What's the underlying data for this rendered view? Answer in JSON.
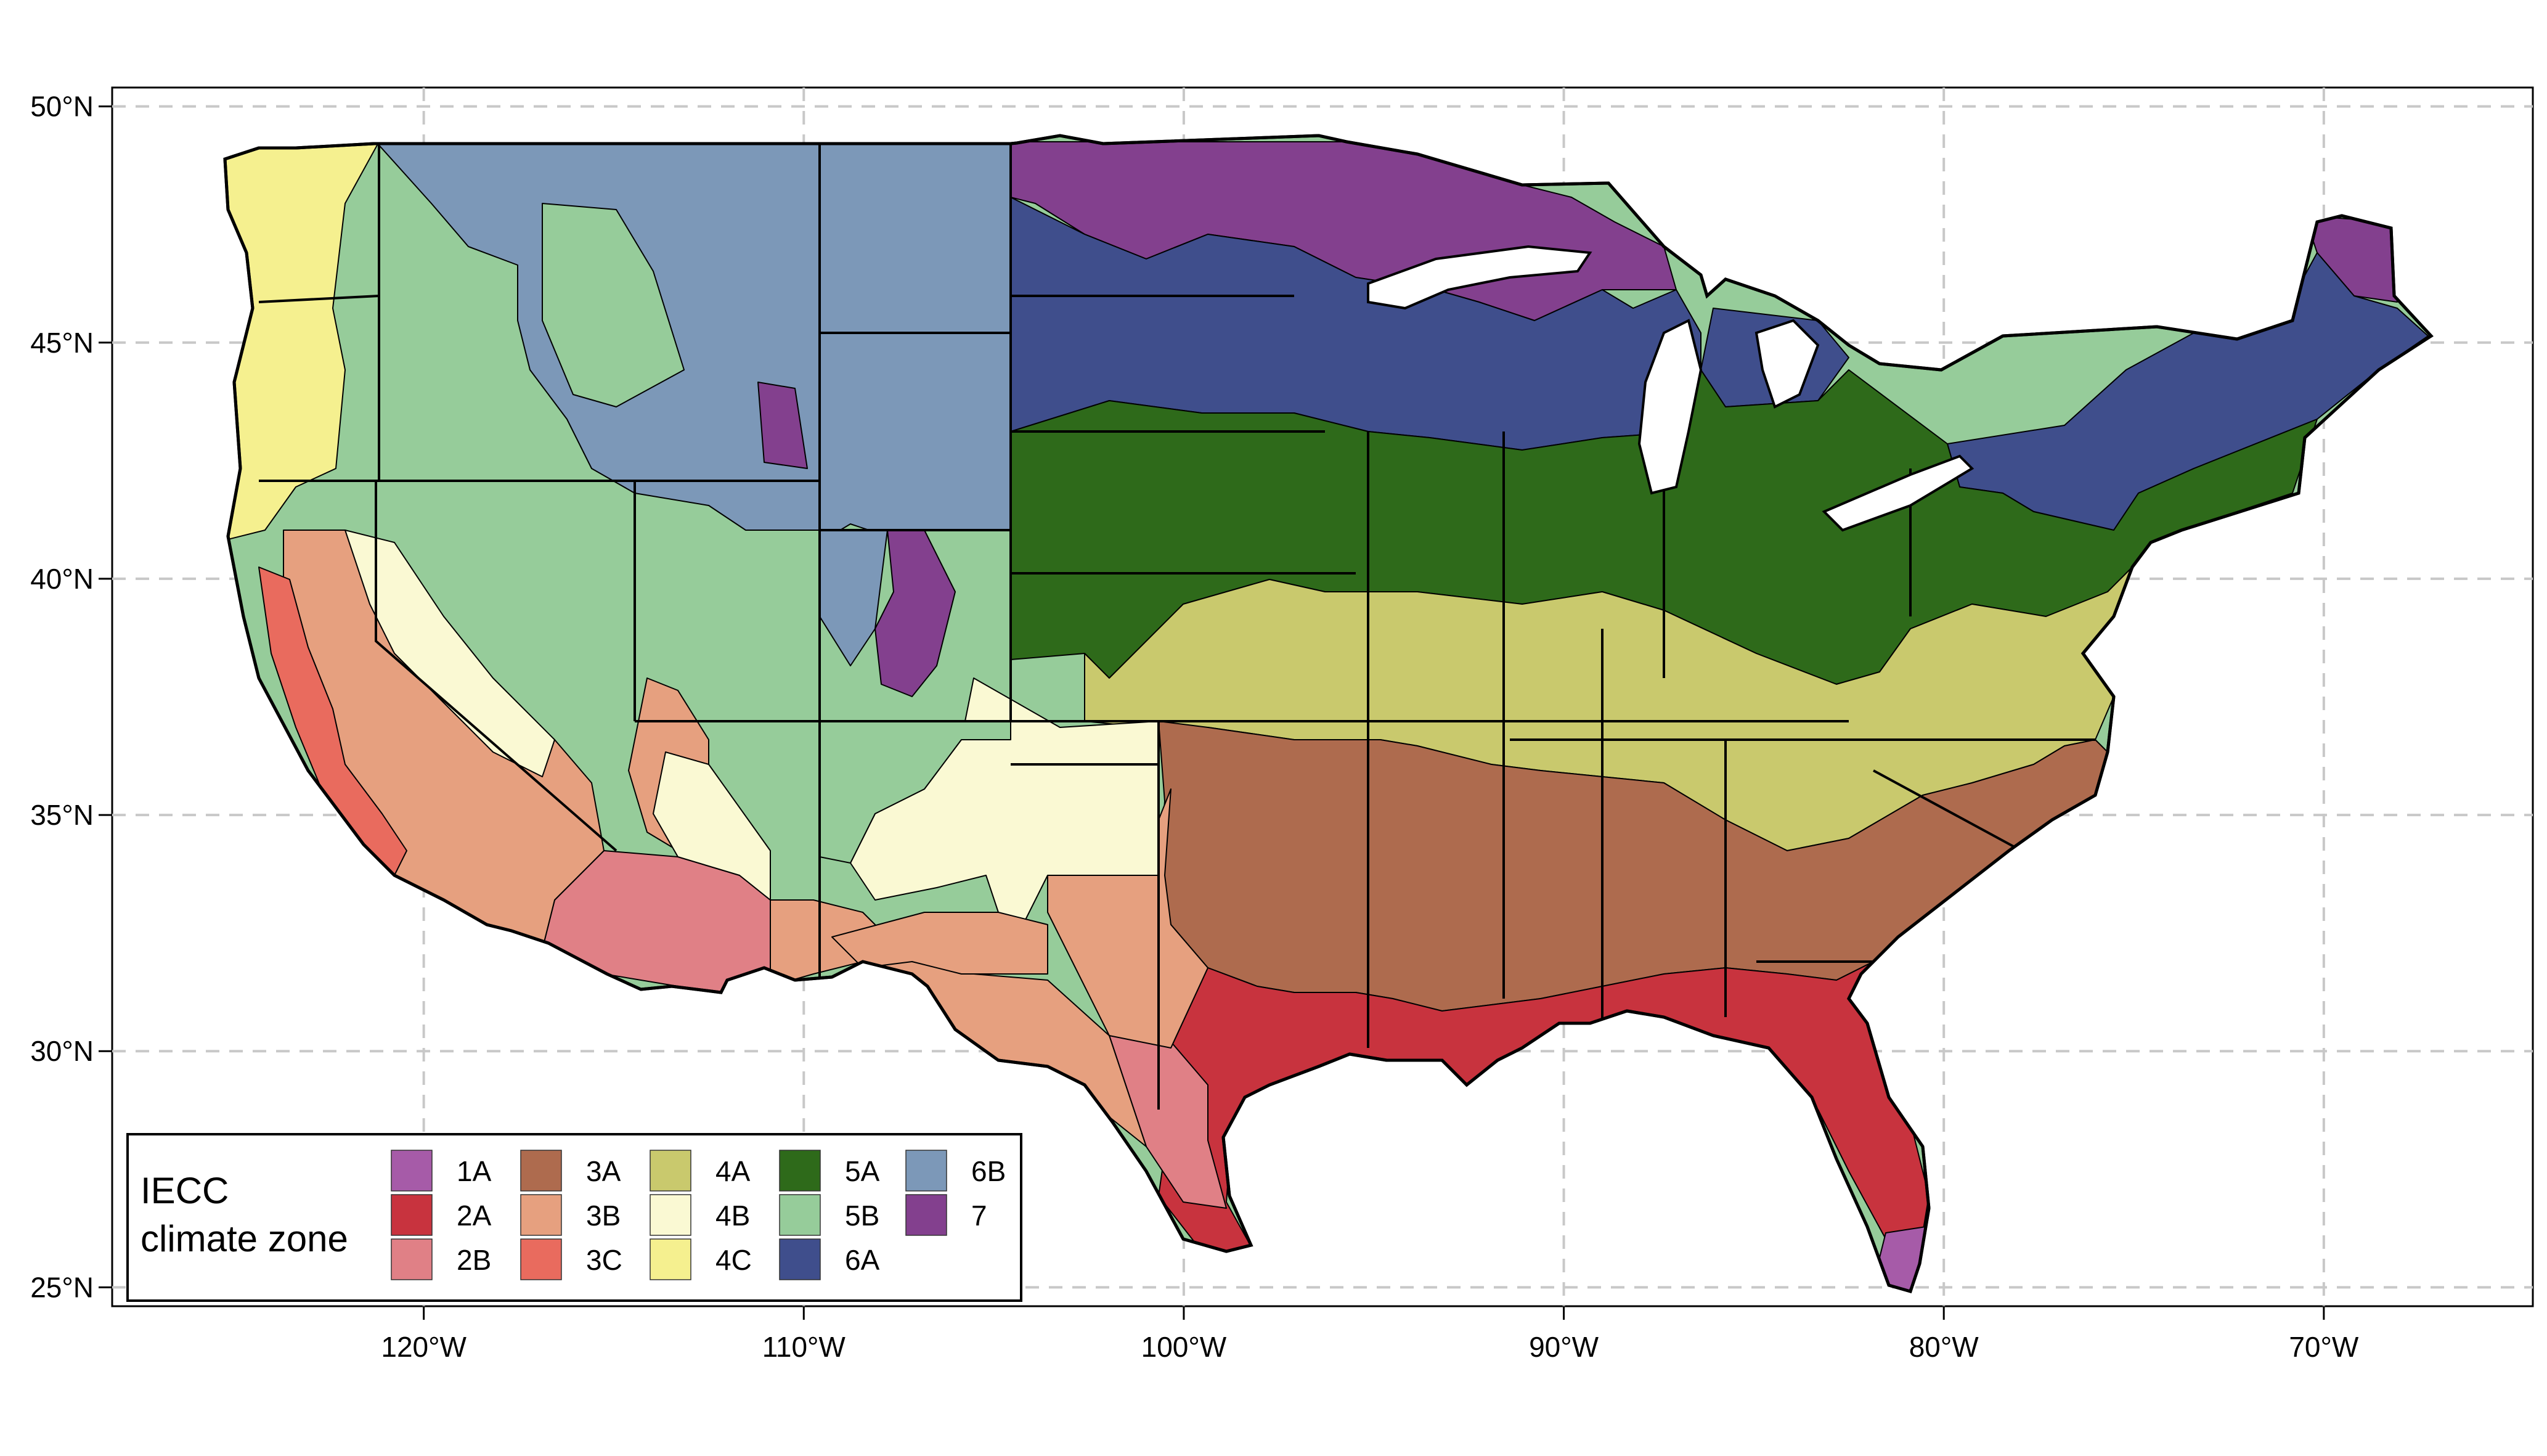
{
  "map": {
    "lon_ticks": [
      {
        "value": -120,
        "label": "120°W"
      },
      {
        "value": -110,
        "label": "110°W"
      },
      {
        "value": -100,
        "label": "100°W"
      },
      {
        "value": -90,
        "label": "90°W"
      },
      {
        "value": -80,
        "label": "80°W"
      },
      {
        "value": -70,
        "label": "70°W"
      }
    ],
    "lat_ticks": [
      {
        "value": 50,
        "label": "50°N"
      },
      {
        "value": 45,
        "label": "45°N"
      },
      {
        "value": 40,
        "label": "40°N"
      },
      {
        "value": 35,
        "label": "35°N"
      },
      {
        "value": 30,
        "label": "30°N"
      },
      {
        "value": 25,
        "label": "25°N"
      }
    ],
    "lon_range": [
      -128.2,
      -64.5
    ],
    "lat_range": [
      24.6,
      50.4
    ],
    "grid": "dashed",
    "colors": {
      "1A": "#A65BA8",
      "2A": "#C8333E",
      "2B": "#E08086",
      "3A": "#AE6B4E",
      "3B": "#E6A07F",
      "3C": "#E96B5E",
      "4A": "#C9C96D",
      "4B": "#FAF9D3",
      "4C": "#F5F08F",
      "5A": "#2E6A1A",
      "5B": "#96CC9A",
      "6A": "#3F4E8C",
      "6B": "#7C98B8",
      "7": "#83408E"
    },
    "outline": "#000000",
    "water": "#ffffff"
  },
  "legend": {
    "title_line1": "IECC",
    "title_line2": "climate zone",
    "columns": [
      [
        {
          "code": "1A",
          "label": "1A"
        },
        {
          "code": "2A",
          "label": "2A"
        },
        {
          "code": "2B",
          "label": "2B"
        }
      ],
      [
        {
          "code": "3A",
          "label": "3A"
        },
        {
          "code": "3B",
          "label": "3B"
        },
        {
          "code": "3C",
          "label": "3C"
        }
      ],
      [
        {
          "code": "4A",
          "label": "4A"
        },
        {
          "code": "4B",
          "label": "4B"
        },
        {
          "code": "4C",
          "label": "4C"
        }
      ],
      [
        {
          "code": "5A",
          "label": "5A"
        },
        {
          "code": "5B",
          "label": "5B"
        },
        {
          "code": "6A",
          "label": "6A"
        }
      ],
      [
        {
          "code": "6B",
          "label": "6B"
        },
        {
          "code": "7",
          "label": "7"
        }
      ]
    ]
  }
}
